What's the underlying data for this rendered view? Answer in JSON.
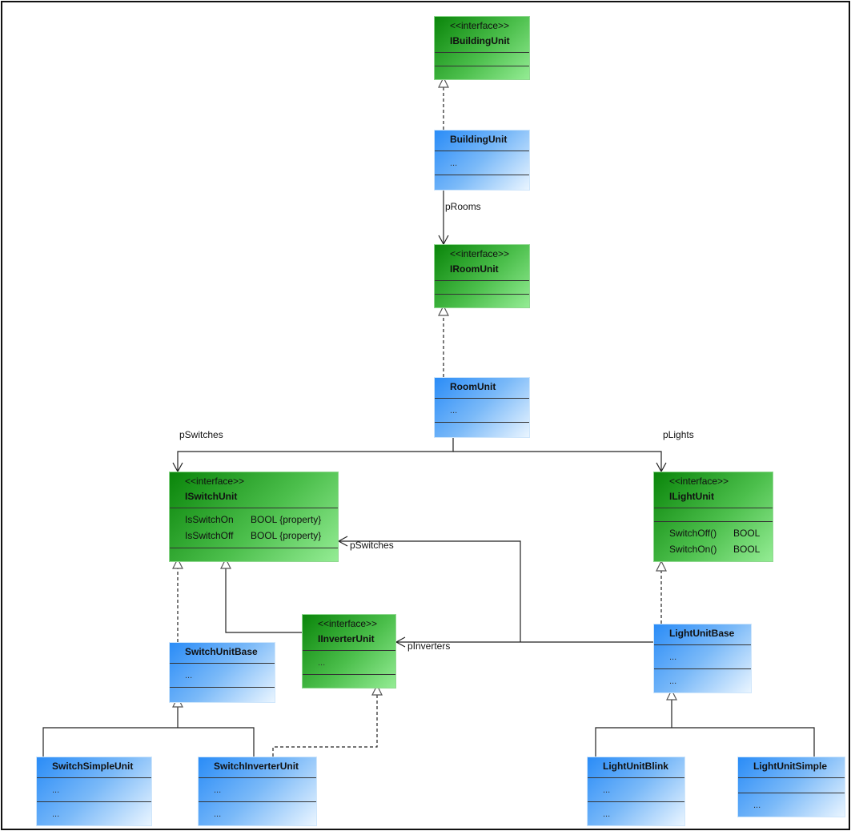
{
  "diagram": {
    "classes": [
      {
        "id": "IBuildingUnit",
        "kind": "interface",
        "stereotype": "<<interface>>",
        "name": "IBuildingUnit",
        "compartments": [
          [],
          []
        ]
      },
      {
        "id": "BuildingUnit",
        "kind": "class",
        "name": "BuildingUnit",
        "compartments": [
          [
            [
              "..."
            ]
          ],
          []
        ]
      },
      {
        "id": "IRoomUnit",
        "kind": "interface",
        "stereotype": "<<interface>>",
        "name": "IRoomUnit",
        "compartments": [
          [],
          []
        ]
      },
      {
        "id": "RoomUnit",
        "kind": "class",
        "name": "RoomUnit",
        "compartments": [
          [
            [
              "..."
            ]
          ],
          []
        ]
      },
      {
        "id": "ISwitchUnit",
        "kind": "interface",
        "stereotype": "<<interface>>",
        "name": "ISwitchUnit",
        "compartments": [
          [
            [
              "IsSwitchOn",
              "BOOL {property}"
            ],
            [
              "IsSwitchOff",
              "BOOL {property}"
            ]
          ],
          []
        ]
      },
      {
        "id": "ILightUnit",
        "kind": "interface",
        "stereotype": "<<interface>>",
        "name": "ILightUnit",
        "compartments": [
          [],
          [
            [
              "SwitchOff()",
              "BOOL"
            ],
            [
              "SwitchOn()",
              "BOOL"
            ]
          ]
        ]
      },
      {
        "id": "IInverterUnit",
        "kind": "interface",
        "stereotype": "<<interface>>",
        "name": "IInverterUnit",
        "compartments": [
          [
            [
              "..."
            ]
          ],
          []
        ]
      },
      {
        "id": "SwitchUnitBase",
        "kind": "class",
        "name": "SwitchUnitBase",
        "compartments": [
          [
            [
              "..."
            ]
          ],
          []
        ]
      },
      {
        "id": "LightUnitBase",
        "kind": "class",
        "name": "LightUnitBase",
        "compartments": [
          [
            [
              "..."
            ]
          ],
          [
            [
              "..."
            ]
          ]
        ]
      },
      {
        "id": "SwitchSimpleUnit",
        "kind": "class",
        "name": "SwitchSimpleUnit",
        "compartments": [
          [
            [
              "..."
            ]
          ],
          [
            [
              "..."
            ]
          ]
        ]
      },
      {
        "id": "SwitchInverterUnit",
        "kind": "class",
        "name": "SwitchInverterUnit",
        "compartments": [
          [
            [
              "..."
            ]
          ],
          [
            [
              "..."
            ]
          ]
        ]
      },
      {
        "id": "LightUnitBlink",
        "kind": "class",
        "name": "LightUnitBlink",
        "compartments": [
          [
            [
              "..."
            ]
          ],
          [
            [
              "..."
            ]
          ]
        ]
      },
      {
        "id": "LightUnitSimple",
        "kind": "class",
        "name": "LightUnitSimple",
        "compartments": [
          [],
          [
            [
              "..."
            ]
          ]
        ]
      }
    ],
    "relations": [
      {
        "from": "BuildingUnit",
        "to": "IBuildingUnit",
        "type": "realization"
      },
      {
        "from": "BuildingUnit",
        "to": "IRoomUnit",
        "type": "association",
        "label": "pRooms"
      },
      {
        "from": "RoomUnit",
        "to": "IRoomUnit",
        "type": "realization"
      },
      {
        "from": "RoomUnit",
        "to": "ISwitchUnit",
        "type": "association",
        "label": "pSwitches"
      },
      {
        "from": "RoomUnit",
        "to": "ILightUnit",
        "type": "association",
        "label": "pLights"
      },
      {
        "from": "SwitchUnitBase",
        "to": "ISwitchUnit",
        "type": "realization"
      },
      {
        "from": "IInverterUnit",
        "to": "ISwitchUnit",
        "type": "generalization"
      },
      {
        "from": "LightUnitBase",
        "to": "ISwitchUnit",
        "type": "association",
        "label": "pSwitches"
      },
      {
        "from": "LightUnitBase",
        "to": "IInverterUnit",
        "type": "association",
        "label": "pInverters"
      },
      {
        "from": "LightUnitBase",
        "to": "ILightUnit",
        "type": "realization"
      },
      {
        "from": "SwitchSimpleUnit",
        "to": "SwitchUnitBase",
        "type": "generalization"
      },
      {
        "from": "SwitchInverterUnit",
        "to": "SwitchUnitBase",
        "type": "generalization"
      },
      {
        "from": "SwitchInverterUnit",
        "to": "IInverterUnit",
        "type": "realization"
      },
      {
        "from": "LightUnitBlink",
        "to": "LightUnitBase",
        "type": "generalization"
      },
      {
        "from": "LightUnitSimple",
        "to": "LightUnitBase",
        "type": "generalization"
      }
    ]
  },
  "colors": {
    "interface_fill": "#0a850a",
    "class_fill": "#2a8cf7",
    "line": "#222222"
  }
}
